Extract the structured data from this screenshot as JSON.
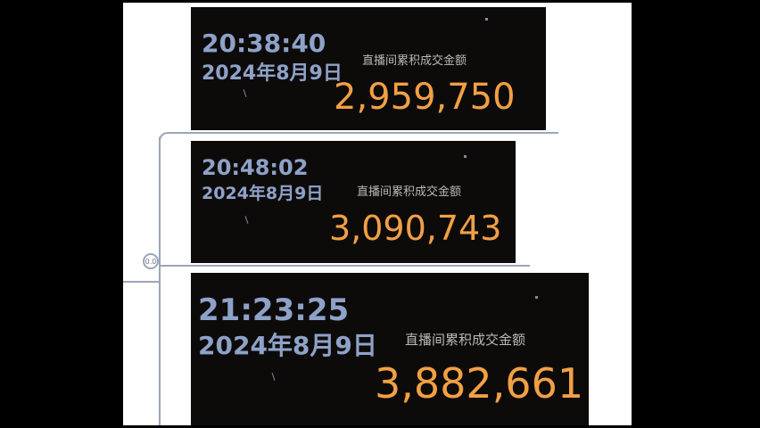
{
  "nodes": [
    {
      "time": "20:38:40",
      "date": "2024年8月9日",
      "label": "直播间累积成交金额",
      "amount": "2,959,750"
    },
    {
      "time": "20:48:02",
      "date": "2024年8月9日",
      "label": "直播间累积成交金额",
      "amount": "3,090,743"
    },
    {
      "time": "21:23:25",
      "date": "2024年8月9日",
      "label": "直播间累积成交金额",
      "amount": "3,882,661"
    }
  ],
  "collapse_node_label": "0.0",
  "colors": {
    "background": "#000000",
    "page": "#ffffff",
    "card_background": "#0d0b0a",
    "time_date_text": "#8ea2c8",
    "amount_text": "#f2a045",
    "label_text": "#b9b9b9",
    "connector": "#9aa6b8"
  },
  "icons": [
    "collapse-toggle-icon"
  ]
}
